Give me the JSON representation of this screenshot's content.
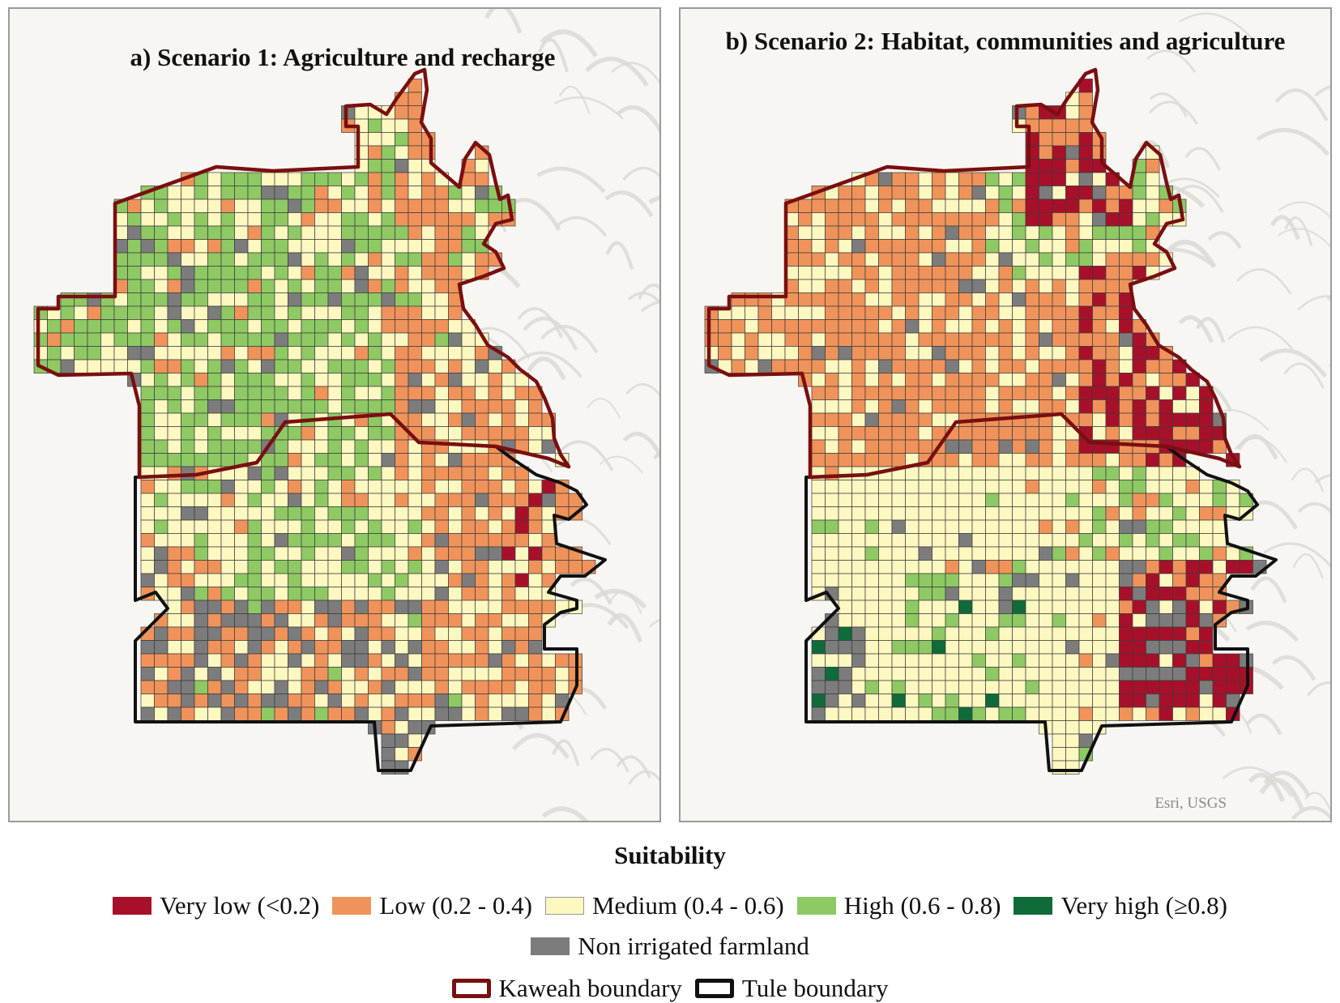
{
  "panels": [
    {
      "id": "a",
      "title": "a) Scenario 1: Agriculture and recharge",
      "attribution": "",
      "seed": 7
    },
    {
      "id": "b",
      "title": "b) Scenario 2: Habitat, communities and agriculture",
      "attribution": "Esri, USGS",
      "seed": 21
    }
  ],
  "legend": {
    "title": "Suitability",
    "classes": [
      {
        "label": "Very low (<0.2)",
        "color": "#a8102a"
      },
      {
        "label": "Low (0.2 - 0.4)",
        "color": "#f0935a"
      },
      {
        "label": "Medium (0.4 - 0.6)",
        "color": "#fdf7c0"
      },
      {
        "label": "High (0.6 - 0.8)",
        "color": "#8ec963"
      },
      {
        "label": "Very high (≥0.8)",
        "color": "#0f6b3a"
      }
    ],
    "non_irrigated": {
      "label": "Non irrigated farmland",
      "color": "#7c7c7c"
    },
    "boundaries": [
      {
        "label": "Kaweah boundary",
        "color": "#7a0f10"
      },
      {
        "label": "Tule boundary",
        "color": "#111111"
      }
    ]
  }
}
